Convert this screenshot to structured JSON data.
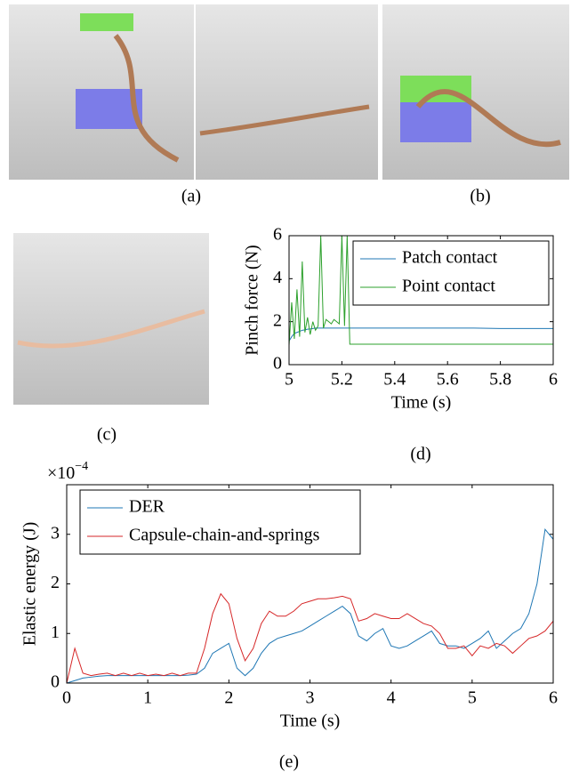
{
  "captions": [
    "(a)",
    "(b)",
    "(c)",
    "(d)",
    "(e)"
  ],
  "chart_data": [
    {
      "type": "line",
      "ylabel": "Pinch force (N)",
      "xlabel": "Time (s)",
      "xlim": [
        5,
        6
      ],
      "xticks": [
        5,
        5.2,
        5.4,
        5.6,
        5.8,
        6
      ],
      "ylim": [
        0,
        6
      ],
      "yticks": [
        0,
        2,
        4,
        6
      ],
      "legend": "upper-right",
      "grid": false,
      "x": [
        5.0,
        5.01,
        5.02,
        5.03,
        5.04,
        5.05,
        5.06,
        5.07,
        5.08,
        5.09,
        5.1,
        5.11,
        5.12,
        5.13,
        5.14,
        5.15,
        5.16,
        5.17,
        5.18,
        5.19,
        5.2,
        5.21,
        5.22,
        5.23,
        5.24,
        5.3,
        5.4,
        5.5,
        5.6,
        5.7,
        5.8,
        5.9,
        6.0
      ],
      "series": [
        {
          "name": "Patch contact",
          "color": "#1f77b4",
          "values": [
            1.1,
            1.3,
            1.45,
            1.5,
            1.55,
            1.6,
            1.62,
            1.65,
            1.66,
            1.68,
            1.7,
            1.7,
            1.7,
            1.7,
            1.7,
            1.7,
            1.7,
            1.7,
            1.7,
            1.7,
            1.7,
            1.7,
            1.7,
            1.7,
            1.7,
            1.7,
            1.7,
            1.7,
            1.7,
            1.7,
            1.68,
            1.68,
            1.68
          ]
        },
        {
          "name": "Point contact",
          "color": "#2ca02c",
          "values": [
            0.9,
            2.9,
            1.2,
            3.5,
            1.3,
            4.8,
            1.5,
            2.2,
            1.4,
            2.0,
            1.6,
            1.8,
            6.0,
            1.7,
            2.1,
            2.0,
            1.9,
            2.1,
            2.0,
            1.9,
            6.0,
            1.8,
            6.0,
            0.95,
            0.95,
            0.95,
            0.95,
            0.95,
            0.95,
            0.95,
            0.95,
            0.95,
            0.95
          ]
        }
      ]
    },
    {
      "type": "line",
      "ylabel": "Elastic energy (J)",
      "xlabel": "Time (s)",
      "y_scale_base": "×10",
      "y_scale_exponent": "−4",
      "xlim": [
        0,
        6
      ],
      "xticks": [
        0,
        1,
        2,
        3,
        4,
        5,
        6
      ],
      "ylim": [
        0,
        4
      ],
      "yticks": [
        0,
        1,
        2,
        3
      ],
      "legend": "upper-left",
      "grid": false,
      "x": [
        0,
        0.1,
        0.2,
        0.3,
        0.4,
        0.5,
        0.6,
        0.7,
        0.8,
        0.9,
        1.0,
        1.1,
        1.2,
        1.3,
        1.4,
        1.5,
        1.6,
        1.7,
        1.8,
        1.9,
        2.0,
        2.1,
        2.2,
        2.3,
        2.4,
        2.5,
        2.6,
        2.7,
        2.8,
        2.9,
        3.0,
        3.1,
        3.2,
        3.3,
        3.4,
        3.5,
        3.6,
        3.7,
        3.8,
        3.9,
        4.0,
        4.1,
        4.2,
        4.3,
        4.4,
        4.5,
        4.6,
        4.7,
        4.8,
        4.9,
        5.0,
        5.1,
        5.2,
        5.3,
        5.4,
        5.5,
        5.6,
        5.7,
        5.8,
        5.9,
        6.0
      ],
      "series": [
        {
          "name": "DER",
          "color": "#1f77b4",
          "values": [
            0,
            0.05,
            0.1,
            0.12,
            0.14,
            0.15,
            0.15,
            0.15,
            0.15,
            0.15,
            0.15,
            0.15,
            0.15,
            0.15,
            0.15,
            0.16,
            0.18,
            0.3,
            0.6,
            0.7,
            0.8,
            0.3,
            0.15,
            0.3,
            0.6,
            0.8,
            0.9,
            0.95,
            1.0,
            1.05,
            1.15,
            1.25,
            1.35,
            1.45,
            1.55,
            1.4,
            0.95,
            0.85,
            1.0,
            1.1,
            0.75,
            0.7,
            0.75,
            0.85,
            0.95,
            1.05,
            0.8,
            0.75,
            0.75,
            0.7,
            0.8,
            0.9,
            1.05,
            0.7,
            0.85,
            1.0,
            1.1,
            1.4,
            2.0,
            3.1,
            2.9
          ]
        },
        {
          "name": "Capsule-chain-and-springs",
          "color": "#d62728",
          "values": [
            0,
            0.7,
            0.2,
            0.15,
            0.18,
            0.2,
            0.15,
            0.2,
            0.15,
            0.2,
            0.15,
            0.18,
            0.15,
            0.2,
            0.15,
            0.2,
            0.2,
            0.7,
            1.4,
            1.8,
            1.6,
            0.9,
            0.45,
            0.7,
            1.2,
            1.45,
            1.35,
            1.35,
            1.45,
            1.6,
            1.65,
            1.7,
            1.7,
            1.72,
            1.75,
            1.7,
            1.25,
            1.3,
            1.4,
            1.35,
            1.3,
            1.3,
            1.4,
            1.3,
            1.2,
            1.15,
            1.0,
            0.7,
            0.7,
            0.75,
            0.55,
            0.75,
            0.7,
            0.8,
            0.75,
            0.6,
            0.75,
            0.9,
            0.95,
            1.05,
            1.25
          ]
        }
      ]
    }
  ]
}
